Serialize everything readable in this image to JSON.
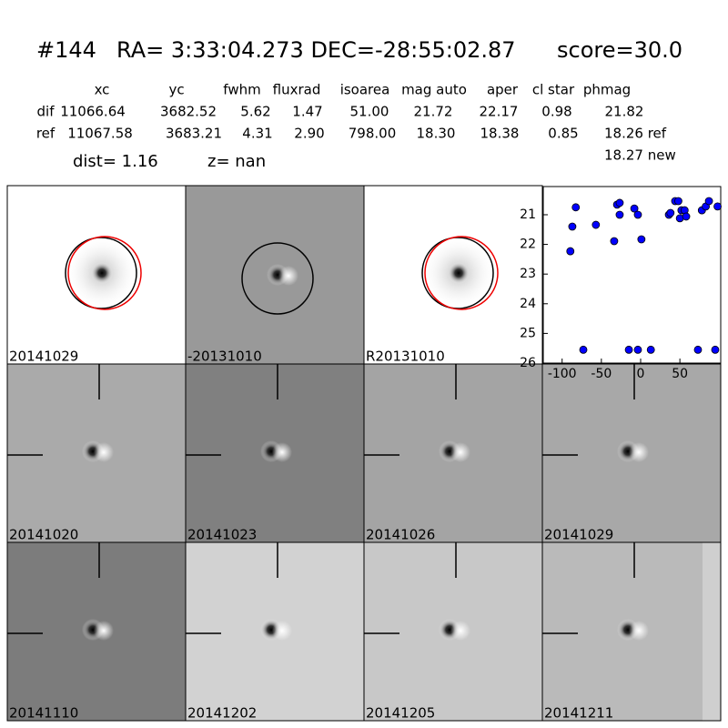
{
  "header": {
    "id": "#144",
    "coords": "RA= 3:33:04.273 DEC=-28:55:02.87",
    "score": "score=30.0",
    "columns": [
      "xc",
      "yc",
      "fwhm",
      "fluxrad",
      "isoarea",
      "mag auto",
      "aper",
      "cl star",
      "phmag"
    ],
    "rows": [
      [
        "dif",
        "11066.64",
        "3682.52",
        "5.62",
        "1.47",
        "51.00",
        "21.72",
        "22.17",
        "0.98",
        "21.82"
      ],
      [
        "ref",
        "11067.58",
        "3683.21",
        "4.31",
        "2.90",
        "798.00",
        "18.30",
        "18.38",
        "0.85",
        "18.26 ref"
      ]
    ],
    "extra": "18.27 new",
    "dist": "dist=  1.16",
    "z": "z=   nan"
  },
  "stamps": [
    {
      "label": "20141029"
    },
    {
      "label": "-20131010"
    },
    {
      "label": "R20131010"
    },
    {
      "label": "20141020"
    },
    {
      "label": "20141023"
    },
    {
      "label": "20141026"
    },
    {
      "label": "20141029",
      "color": "#ff0000"
    },
    {
      "label": "20141110"
    },
    {
      "label": "20141202"
    },
    {
      "label": "20141205"
    },
    {
      "label": "20141211"
    }
  ],
  "chart_data": {
    "type": "scatter",
    "color": "#0000ff",
    "x": [
      -89.5,
      -87,
      -82.6,
      -73,
      -57,
      -33.7,
      -30,
      -26.7,
      -26.7,
      -15,
      -8,
      -3.5,
      -3.5,
      1,
      13,
      36,
      38,
      44,
      48,
      52,
      50,
      56,
      58,
      73,
      78,
      83,
      87,
      95,
      98
    ],
    "values": [
      22.23,
      21.4,
      20.75,
      25.55,
      21.34,
      21.89,
      20.66,
      20.6,
      21.0,
      25.55,
      20.79,
      21.0,
      25.55,
      21.83,
      25.55,
      21.0,
      20.94,
      20.54,
      20.54,
      20.85,
      21.12,
      20.85,
      21.06,
      25.55,
      20.85,
      20.72,
      20.54,
      25.55,
      20.72
    ],
    "xlim": [
      -124,
      102
    ],
    "ylim": [
      26,
      20.05
    ],
    "xticks": [
      -100,
      -50,
      0,
      50
    ],
    "yticks": [
      21,
      22,
      23,
      24,
      25,
      26
    ]
  }
}
